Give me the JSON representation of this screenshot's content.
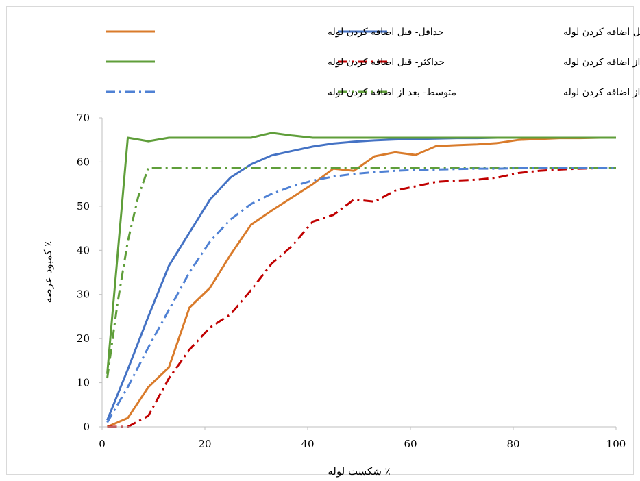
{
  "chart_data": {
    "type": "line",
    "xlabel": "٪ شکست لوله",
    "ylabel": "٪ کمبود عرضه",
    "xlim": [
      0,
      100
    ],
    "ylim": [
      0,
      70
    ],
    "x_ticks": [
      "0",
      "20",
      "40",
      "60",
      "80",
      "100"
    ],
    "y_ticks": [
      "0",
      "10",
      "20",
      "30",
      "40",
      "50",
      "60",
      "70"
    ],
    "grid": false,
    "legend_position": "top",
    "series": [
      {
        "name": "متوسط- قبل اضافه کردن لوله",
        "color": "#4472c4",
        "dash": "solid",
        "x": [
          1,
          5,
          9,
          13,
          17,
          21,
          25,
          29,
          33,
          37,
          41,
          45,
          49,
          53,
          57,
          61,
          65,
          69,
          73,
          77,
          81,
          85,
          89,
          93,
          97,
          100
        ],
        "y": [
          1.5,
          13,
          25,
          36.5,
          44,
          51.5,
          56.5,
          59.5,
          61.5,
          62.5,
          63.5,
          64.2,
          64.6,
          64.9,
          65.1,
          65.2,
          65.3,
          65.4,
          65.4,
          65.5,
          65.5,
          65.5,
          65.5,
          65.5,
          65.5,
          65.5
        ]
      },
      {
        "name": "حداقل- قبل اضافه کردن لوله",
        "color": "#d97b2b",
        "dash": "solid",
        "x": [
          1,
          5,
          9,
          13,
          17,
          21,
          25,
          29,
          33,
          37,
          41,
          45,
          49,
          53,
          57,
          61,
          65,
          69,
          73,
          77,
          81,
          85,
          89,
          93,
          97,
          100
        ],
        "y": [
          0,
          2,
          9,
          13.5,
          27,
          31.5,
          39,
          45.8,
          49,
          52,
          55,
          58.5,
          58,
          61.3,
          62.2,
          61.6,
          63.6,
          63.8,
          64,
          64.3,
          65,
          65.2,
          65.4,
          65.4,
          65.5,
          65.5
        ]
      },
      {
        "name": "حداقل- بعد از اضافه کردن لوله",
        "color": "#c00000",
        "dash": "dashdot",
        "x": [
          1,
          5,
          9,
          13,
          17,
          21,
          25,
          29,
          33,
          37,
          41,
          45,
          49,
          53,
          57,
          61,
          65,
          69,
          73,
          77,
          81,
          85,
          89,
          93,
          97,
          100
        ],
        "y": [
          0,
          0,
          2.5,
          11,
          17.5,
          22.5,
          25.5,
          31,
          37,
          41,
          46.5,
          48,
          51.5,
          51,
          53.5,
          54.5,
          55.5,
          55.8,
          56,
          56.5,
          57.5,
          58,
          58.3,
          58.5,
          58.6,
          58.7
        ]
      },
      {
        "name": "حداکثر- قبل اضافه کردن لوله",
        "color": "#5f9e3a",
        "dash": "solid",
        "x": [
          1,
          5,
          9,
          13,
          17,
          21,
          25,
          29,
          33,
          37,
          41,
          45,
          49,
          53,
          57,
          61,
          65,
          69,
          73,
          77,
          81,
          85,
          89,
          93,
          97,
          100
        ],
        "y": [
          12,
          65.5,
          64.7,
          65.5,
          65.5,
          65.5,
          65.5,
          65.5,
          66.6,
          66,
          65.5,
          65.5,
          65.5,
          65.5,
          65.5,
          65.5,
          65.5,
          65.5,
          65.5,
          65.5,
          65.5,
          65.5,
          65.5,
          65.5,
          65.5,
          65.5
        ]
      },
      {
        "name": "حداکثر- بعد از اضافه کردن لوله",
        "color": "#5f9e3a",
        "dash": "dashdot",
        "x": [
          1,
          3,
          5,
          7,
          9,
          13,
          17,
          21,
          25,
          29,
          33,
          37,
          41,
          45,
          49,
          53,
          57,
          61,
          65,
          69,
          73,
          77,
          81,
          85,
          89,
          93,
          97,
          100
        ],
        "y": [
          11,
          28,
          42,
          52,
          58.7,
          58.7,
          58.7,
          58.7,
          58.7,
          58.7,
          58.7,
          58.7,
          58.7,
          58.7,
          58.7,
          58.7,
          58.7,
          58.7,
          58.7,
          58.7,
          58.7,
          58.7,
          58.7,
          58.7,
          58.7,
          58.7,
          58.7,
          58.7
        ]
      },
      {
        "name": "متوسط- بعد از اضافه کردن لوله",
        "color": "#4f81d4",
        "dash": "dashdot",
        "x": [
          1,
          5,
          9,
          13,
          17,
          21,
          25,
          29,
          33,
          37,
          41,
          45,
          49,
          53,
          57,
          61,
          65,
          69,
          73,
          77,
          81,
          85,
          89,
          93,
          97,
          100
        ],
        "y": [
          1,
          9,
          18,
          26.5,
          35,
          42,
          47,
          50.5,
          52.8,
          54.5,
          55.8,
          56.7,
          57.3,
          57.7,
          58,
          58.2,
          58.3,
          58.4,
          58.5,
          58.5,
          58.6,
          58.6,
          58.6,
          58.7,
          58.7,
          58.7
        ]
      }
    ]
  }
}
